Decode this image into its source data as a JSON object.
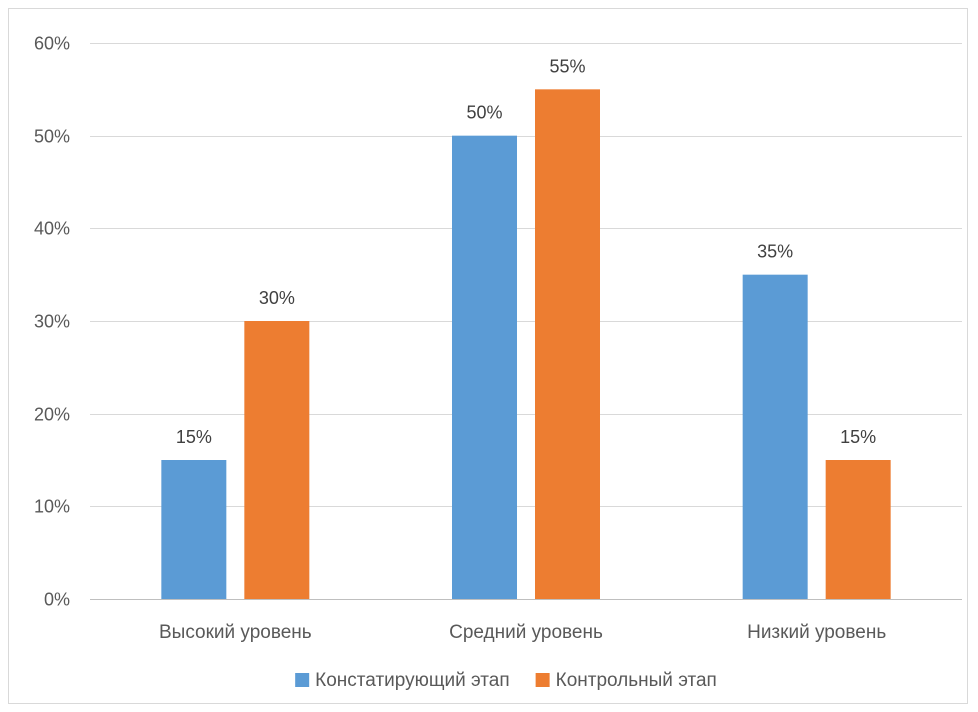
{
  "chart_data": {
    "type": "bar",
    "categories": [
      "Высокий уровень",
      "Средний уровень",
      "Низкий уровень"
    ],
    "series": [
      {
        "name": "Констатирующий этап",
        "values": [
          15,
          50,
          35
        ],
        "color": "#5b9bd5"
      },
      {
        "name": "Контрольный этап",
        "values": [
          30,
          55,
          15
        ],
        "color": "#ed7d31"
      }
    ],
    "y_ticks": [
      "0%",
      "10%",
      "20%",
      "30%",
      "40%",
      "50%",
      "60%"
    ],
    "ylim": [
      0,
      60
    ],
    "value_suffix": "%",
    "grid": true,
    "legend_position": "bottom"
  }
}
